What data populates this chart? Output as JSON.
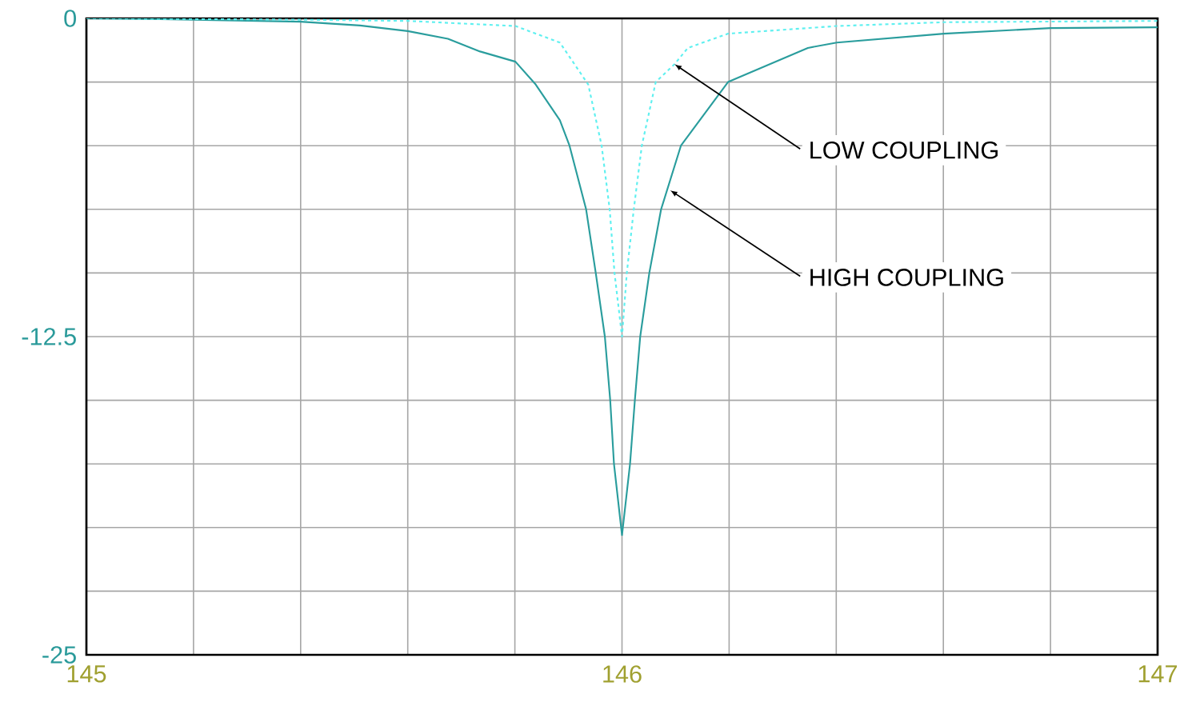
{
  "chart_data": {
    "type": "line",
    "xlim": [
      145,
      147
    ],
    "ylim": [
      -25,
      0
    ],
    "xticks": [
      145,
      {
        "value": 145.2,
        "label": null
      },
      {
        "value": 145.4,
        "label": null
      },
      {
        "value": 145.6,
        "label": null
      },
      {
        "value": 145.8,
        "label": null
      },
      146,
      {
        "value": 146.2,
        "label": null
      },
      {
        "value": 146.4,
        "label": null
      },
      {
        "value": 146.6,
        "label": null
      },
      {
        "value": 146.8,
        "label": null
      },
      147
    ],
    "yticks": [
      -25,
      {
        "value": -22.5,
        "label": null
      },
      {
        "value": -20,
        "label": null
      },
      {
        "value": -17.5,
        "label": null
      },
      {
        "value": -15,
        "label": null
      },
      -12.5,
      {
        "value": -10,
        "label": null
      },
      {
        "value": -7.5,
        "label": null
      },
      {
        "value": -5,
        "label": null
      },
      {
        "value": -2.5,
        "label": null
      },
      0
    ],
    "grid": true,
    "marker": "none",
    "series": [
      {
        "color": "#2a9d9d",
        "line_style": "solid",
        "x": [
          145.0,
          145.137,
          145.4,
          145.511,
          145.6,
          145.675,
          145.735,
          145.801,
          145.839,
          145.884,
          145.902,
          145.933,
          145.951,
          145.968,
          145.978,
          145.985,
          146.0,
          146.015,
          146.024,
          146.034,
          146.051,
          146.073,
          146.11,
          146.198,
          146.347,
          146.401,
          146.601,
          146.8,
          147.0
        ],
        "values": [
          0,
          -0.03,
          -0.13,
          -0.28,
          -0.5,
          -0.8,
          -1.3,
          -1.7,
          -2.6,
          -4.0,
          -5.0,
          -7.5,
          -10,
          -12.5,
          -15,
          -17.5,
          -20.3,
          -17.5,
          -15,
          -12.5,
          -10,
          -7.5,
          -5,
          -2.5,
          -1.16,
          -0.95,
          -0.6,
          -0.38,
          -0.35
        ]
      },
      {
        "color": "#5ff0f0",
        "line_style": "dashed",
        "x": [
          145.0,
          145.4,
          145.6,
          145.801,
          145.884,
          145.937,
          145.962,
          145.977,
          145.986,
          146.0,
          146.009,
          146.022,
          146.037,
          146.063,
          146.098,
          146.123,
          146.198,
          146.401,
          146.601,
          147.0
        ],
        "values": [
          0,
          -0.05,
          -0.1,
          -0.3,
          -0.95,
          -2.6,
          -5,
          -7.5,
          -10,
          -12.5,
          -10,
          -7.5,
          -5,
          -2.5,
          -1.8,
          -1.16,
          -0.6,
          -0.3,
          -0.15,
          -0.1
        ]
      }
    ],
    "annotations": [
      {
        "text": "LOW  COUPLING",
        "x": 146.098,
        "y": -1.8
      },
      {
        "text": "HIGH  COUPLING",
        "x": 146.09,
        "y": -6.75
      }
    ]
  }
}
